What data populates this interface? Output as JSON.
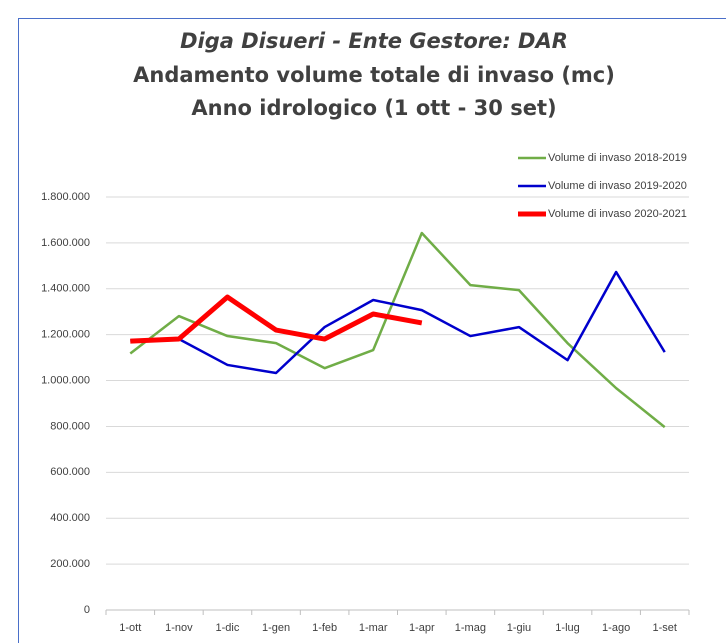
{
  "chart_data": {
    "type": "line",
    "title": "Diga Disueri - Ente Gestore: DAR",
    "subtitle": [
      "Andamento volume totale di invaso (mc)",
      "Anno idrologico (1 ott - 30 set)"
    ],
    "categories": [
      "1-ott",
      "1-nov",
      "1-dic",
      "1-gen",
      "1-feb",
      "1-mar",
      "1-apr",
      "1-mag",
      "1-giu",
      "1-lug",
      "1-ago",
      "1-set"
    ],
    "series": [
      {
        "name": "Volume di invaso 2018-2019",
        "color": "#70ad47",
        "width": 2.5,
        "values": [
          1118000,
          1281000,
          1194000,
          1163000,
          1054000,
          1133000,
          1643000,
          1416000,
          1394000,
          1163000,
          967000,
          797000
        ]
      },
      {
        "name": "Volume di invaso 2019-2020",
        "color": "#0000cc",
        "width": 2.5,
        "values": [
          1175000,
          1181000,
          1068000,
          1033000,
          1233000,
          1351000,
          1307000,
          1194000,
          1233000,
          1089000,
          1473000,
          1124000
        ]
      },
      {
        "name": "Volume di invaso 2020-2021",
        "color": "#ff0000",
        "width": 5,
        "values": [
          1172000,
          1181000,
          1364000,
          1220000,
          1181000,
          1290000,
          1251000,
          null,
          null,
          null,
          null,
          null
        ]
      }
    ],
    "ylim": [
      0,
      1800000
    ],
    "yticks": [
      0,
      {
        "value": 200000,
        "label": "200.000"
      },
      {
        "value": 400000,
        "label": "400.000"
      },
      {
        "value": 600000,
        "label": "600.000"
      },
      {
        "value": 800000,
        "label": "800.000"
      },
      {
        "value": 1000000,
        "label": "1.000.000"
      },
      {
        "value": 1200000,
        "label": "1.200.000"
      },
      {
        "value": 1400000,
        "label": "1.400.000"
      },
      {
        "value": 1600000,
        "label": "1.600.000"
      },
      {
        "value": 1800000,
        "label": "1.800.000"
      }
    ],
    "grid": true,
    "legend": "top-right"
  }
}
